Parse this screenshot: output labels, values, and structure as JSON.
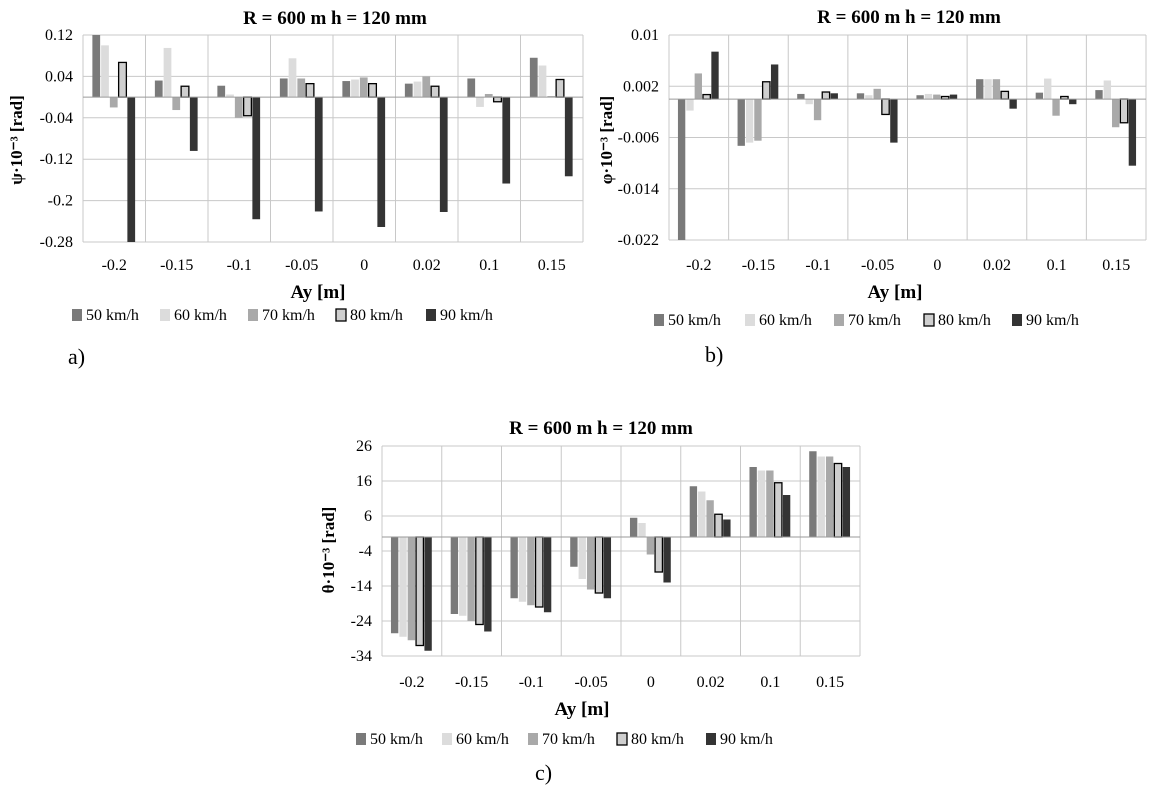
{
  "chart_data": [
    {
      "panel_label": "a)",
      "type": "bar",
      "title": "R = 600 m  h = 120 mm",
      "xlabel_main": "Ay",
      "xlabel_unit": " [m]",
      "ylabel": "ψ·10⁻³ [rad]",
      "categories": [
        "-0.2",
        "-0.15",
        "-0.1",
        "-0.05",
        "0",
        "0.02",
        "0.1",
        "0.15"
      ],
      "ylim": [
        -0.28,
        0.12
      ],
      "yticks": [
        0.12,
        0.04,
        -0.04,
        -0.12,
        -0.2,
        -0.28
      ],
      "ytick_labels": [
        "0.12",
        "0.04",
        "-0.04",
        "-0.12",
        "-0.2",
        "-0.28"
      ],
      "grid": true,
      "legend_position": "bottom",
      "series": [
        {
          "name": "50 km/h",
          "values": [
            0.12,
            0.032,
            0.022,
            0.036,
            0.031,
            0.026,
            0.036,
            0.076
          ]
        },
        {
          "name": "60 km/h",
          "values": [
            0.1,
            0.095,
            0.005,
            0.075,
            0.034,
            0.03,
            -0.019,
            0.061
          ]
        },
        {
          "name": "70 km/h",
          "values": [
            -0.02,
            -0.025,
            -0.04,
            0.036,
            0.038,
            0.04,
            0.006,
            0.002
          ]
        },
        {
          "name": "80 km/h",
          "values": [
            0.067,
            0.021,
            -0.036,
            0.026,
            0.026,
            0.021,
            -0.009,
            0.034
          ]
        },
        {
          "name": "90 km/h",
          "values": [
            -0.28,
            -0.104,
            -0.236,
            -0.221,
            -0.251,
            -0.222,
            -0.167,
            -0.153
          ]
        }
      ]
    },
    {
      "panel_label": "b)",
      "type": "bar",
      "title": "R = 600 m  h = 120 mm",
      "xlabel_main": "Ay",
      "xlabel_unit": " [m]",
      "ylabel": "φ·10⁻³ [rad]",
      "categories": [
        "-0.2",
        "-0.15",
        "-0.1",
        "-0.05",
        "0",
        "0.02",
        "0.1",
        "0.15"
      ],
      "ylim": [
        -0.022,
        0.01
      ],
      "yticks": [
        0.01,
        0.002,
        -0.006,
        -0.014,
        -0.022
      ],
      "ytick_labels": [
        "0.01",
        "0.002",
        "-0.006",
        "-0.014",
        "-0.022"
      ],
      "grid": true,
      "legend_position": "bottom",
      "series": [
        {
          "name": "50 km/h",
          "values": [
            -0.022,
            -0.0073,
            0.0008,
            0.0009,
            0.0006,
            0.0031,
            0.001,
            0.0014
          ]
        },
        {
          "name": "60 km/h",
          "values": [
            -0.0018,
            -0.0068,
            -0.0008,
            0.0006,
            0.0008,
            0.0031,
            0.0032,
            0.0029
          ]
        },
        {
          "name": "70 km/h",
          "values": [
            0.004,
            -0.0065,
            -0.0033,
            0.0016,
            0.0007,
            0.0031,
            -0.0026,
            -0.0044
          ]
        },
        {
          "name": "80 km/h",
          "values": [
            0.0007,
            0.0027,
            0.0011,
            -0.0024,
            0.0004,
            0.0012,
            0.0004,
            -0.0037
          ]
        },
        {
          "name": "90 km/h",
          "values": [
            0.0074,
            0.0054,
            0.0009,
            -0.0068,
            0.0007,
            -0.0015,
            -0.0008,
            -0.0104
          ]
        }
      ]
    },
    {
      "panel_label": "c)",
      "type": "bar",
      "title": "R = 600 m  h = 120 mm",
      "xlabel_main": "Ay",
      "xlabel_unit": " [m]",
      "ylabel": "θ·10⁻³ [rad]",
      "categories": [
        "-0.2",
        "-0.15",
        "-0.1",
        "-0.05",
        "0",
        "0.02",
        "0.1",
        "0.15"
      ],
      "ylim": [
        -34,
        26
      ],
      "yticks": [
        26,
        16,
        6,
        -4,
        -14,
        -24,
        -34
      ],
      "ytick_labels": [
        "26",
        "16",
        "6",
        "-4",
        "-14",
        "-24",
        "-34"
      ],
      "grid": true,
      "legend_position": "bottom",
      "series": [
        {
          "name": "50 km/h",
          "values": [
            -27.5,
            -22,
            -17.5,
            -8.5,
            5.5,
            14.5,
            20,
            24.5
          ]
        },
        {
          "name": "60 km/h",
          "values": [
            -28.5,
            -22.5,
            -18.5,
            -12,
            4,
            13,
            19,
            23
          ]
        },
        {
          "name": "70 km/h",
          "values": [
            -29.5,
            -24,
            -19.5,
            -15,
            -5,
            10.5,
            19,
            23
          ]
        },
        {
          "name": "80 km/h",
          "values": [
            -31,
            -25,
            -20,
            -16,
            -10,
            6.5,
            15.5,
            21
          ]
        },
        {
          "name": "90 km/h",
          "values": [
            -32.5,
            -27,
            -21.5,
            -17.5,
            -13,
            5,
            12,
            20
          ]
        }
      ]
    }
  ],
  "series_colors": [
    "#7a7a7a",
    "#dcdcdc",
    "#a9a9a9",
    "#cfcfcf",
    "#343434"
  ],
  "series_stroke": [
    "none",
    "none",
    "none",
    "#000000",
    "none"
  ]
}
